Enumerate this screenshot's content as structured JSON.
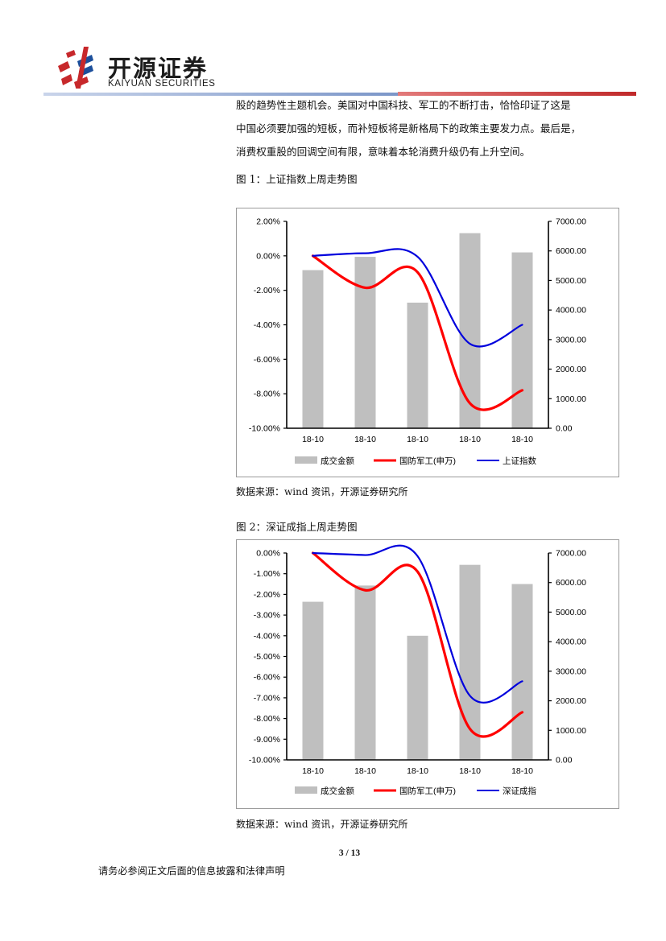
{
  "header": {
    "logo_cn": "开源证券",
    "logo_en": "KAIYUAN SECURITIES",
    "rule_colors": [
      "#7b96c8",
      "#c0292a"
    ]
  },
  "body": {
    "lines": [
      "股的趋势性主题机会。美国对中国科技、军工的不断打击，恰恰印证了这是",
      "中国必须要加强的短板，而补短板将是新格局下的政策主要发力点。最后是，",
      "消费权重股的回调空间有限，意味着本轮消费升级仍有上升空间。"
    ]
  },
  "figures": [
    {
      "caption": "图 1：上证指数上周走势图",
      "source": "数据来源：wind 资讯，开源证券研究所"
    },
    {
      "caption": "图 2：深证成指上周走势图",
      "source": "数据来源：wind 资讯，开源证券研究所"
    }
  ],
  "chart_data": [
    {
      "type": "bar+line",
      "categories": [
        "18-10",
        "18-10",
        "18-10",
        "18-10",
        "18-10"
      ],
      "y_left": {
        "min": -10,
        "max": 2,
        "step": 2,
        "ticks": [
          "2.00%",
          "0.00%",
          "-2.00%",
          "-4.00%",
          "-6.00%",
          "-8.00%",
          "-10.00%"
        ]
      },
      "y_right": {
        "min": 0,
        "max": 7000,
        "step": 1000,
        "ticks": [
          "7000.00",
          "6000.00",
          "5000.00",
          "4000.00",
          "3000.00",
          "2000.00",
          "1000.00",
          "0.00"
        ]
      },
      "bars": {
        "name": "成交金额",
        "axis": "right",
        "color": "#bfbfbf",
        "values": [
          5350,
          5800,
          4250,
          6600,
          5950
        ]
      },
      "lines": [
        {
          "name": "国防军工(申万)",
          "axis": "left",
          "color": "#ff0000",
          "values": [
            0.0,
            -1.85,
            -0.95,
            -8.55,
            -7.8
          ]
        },
        {
          "name": "上证指数",
          "axis": "left",
          "color": "#0000dd",
          "values": [
            0.0,
            0.15,
            -0.05,
            -5.1,
            -4.0
          ]
        }
      ],
      "legend_position": "bottom"
    },
    {
      "type": "bar+line",
      "categories": [
        "18-10",
        "18-10",
        "18-10",
        "18-10",
        "18-10"
      ],
      "y_left": {
        "min": -10,
        "max": 0,
        "step": 1,
        "ticks": [
          "0.00%",
          "-1.00%",
          "-2.00%",
          "-3.00%",
          "-4.00%",
          "-5.00%",
          "-6.00%",
          "-7.00%",
          "-8.00%",
          "-9.00%",
          "-10.00%"
        ]
      },
      "y_right": {
        "min": 0,
        "max": 7000,
        "step": 1000,
        "ticks": [
          "7000.00",
          "6000.00",
          "5000.00",
          "4000.00",
          "3000.00",
          "2000.00",
          "1000.00",
          "0.00"
        ]
      },
      "bars": {
        "name": "成交金额",
        "axis": "right",
        "color": "#bfbfbf",
        "values": [
          5350,
          5900,
          4200,
          6600,
          5950
        ]
      },
      "lines": [
        {
          "name": "国防军工(申万)",
          "axis": "left",
          "color": "#ff0000",
          "values": [
            0.0,
            -1.8,
            -0.9,
            -8.5,
            -7.7
          ]
        },
        {
          "name": "深证成指",
          "axis": "left",
          "color": "#0000dd",
          "values": [
            0.0,
            -0.1,
            -0.15,
            -6.9,
            -6.2
          ]
        }
      ],
      "legend_position": "bottom"
    }
  ],
  "footer": {
    "page": "3 / 13",
    "disclaimer": "请务必参阅正文后面的信息披露和法律声明"
  }
}
